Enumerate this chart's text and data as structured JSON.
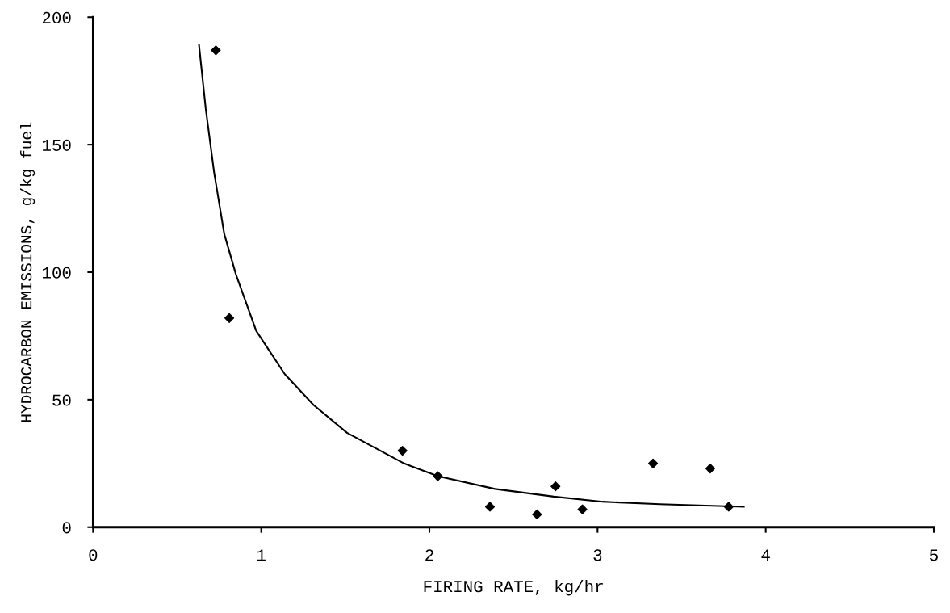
{
  "chart_data": {
    "type": "scatter",
    "xlabel": "FIRING RATE, kg/hr",
    "ylabel": "HYDROCARBON EMISSIONS, g/kg fuel",
    "xlim": [
      0,
      5
    ],
    "ylim": [
      0,
      200
    ],
    "xticks": [
      0,
      1,
      2,
      3,
      4,
      5
    ],
    "yticks": [
      0,
      50,
      100,
      150,
      200
    ],
    "grid": false,
    "legend": false,
    "series": [
      {
        "marker": "diamond",
        "color": "#000000",
        "x": [
          0.73,
          0.81,
          1.84,
          2.05,
          2.36,
          2.64,
          2.75,
          2.91,
          3.33,
          3.67,
          3.78
        ],
        "values": [
          187,
          82,
          30,
          20,
          8,
          5,
          16,
          7,
          25,
          23,
          8
        ]
      },
      {
        "type": "line",
        "line_style": "solid",
        "color": "#000000",
        "x": [
          0.63,
          0.67,
          0.72,
          0.78,
          0.85,
          0.97,
          1.14,
          1.31,
          1.51,
          1.85,
          2.05,
          2.39,
          2.74,
          3.03,
          3.37,
          3.87
        ],
        "values": [
          189,
          164,
          139,
          115,
          99,
          77,
          60,
          48,
          37,
          25,
          20,
          15,
          12,
          10,
          9,
          8
        ]
      }
    ]
  }
}
